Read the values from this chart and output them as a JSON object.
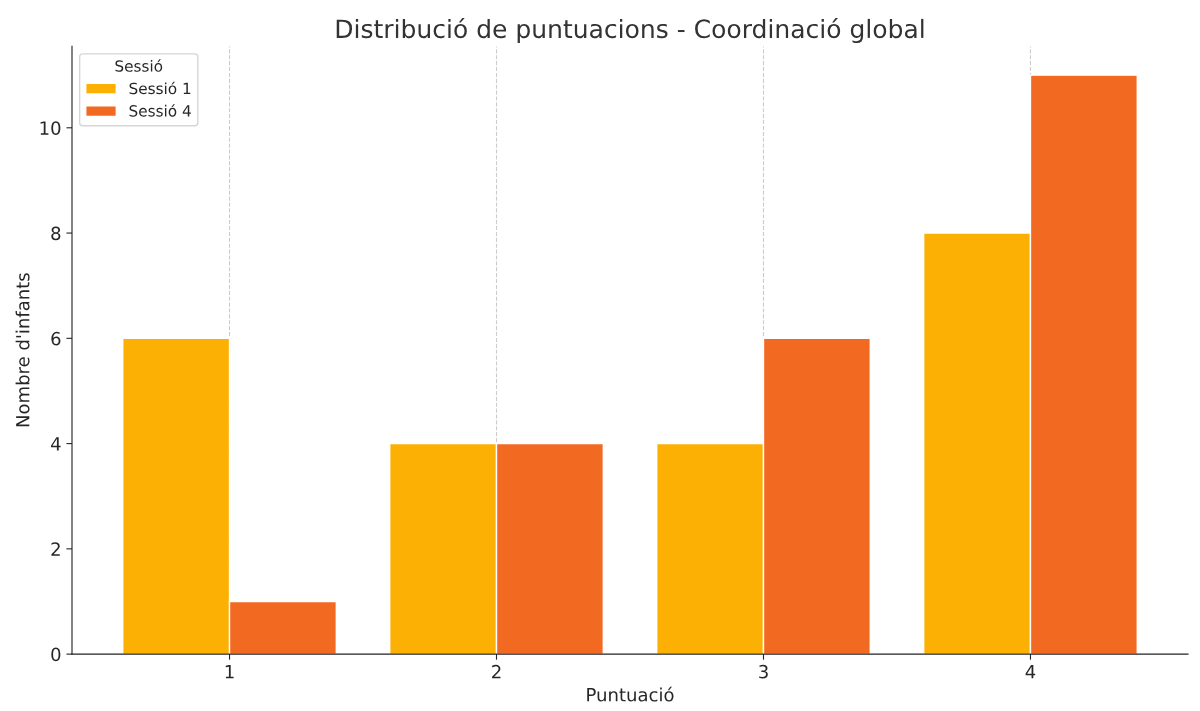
{
  "chart_data": {
    "type": "bar",
    "title": "Distribució de puntuacions - Coordinació global",
    "xlabel": "Puntuació",
    "ylabel": "Nombre d'infants",
    "legend_title": "Sessió",
    "categories": [
      "1",
      "2",
      "3",
      "4"
    ],
    "series": [
      {
        "name": "Sessió 1",
        "color": "#fbb003",
        "values": [
          6,
          4,
          4,
          8
        ]
      },
      {
        "name": "Sessió 4",
        "color": "#f26922",
        "values": [
          1,
          4,
          6,
          11
        ]
      }
    ],
    "ylim": [
      0,
      11.55
    ],
    "yticks": [
      0,
      2,
      4,
      6,
      8,
      10
    ],
    "grid": "x",
    "legend": "top left"
  }
}
